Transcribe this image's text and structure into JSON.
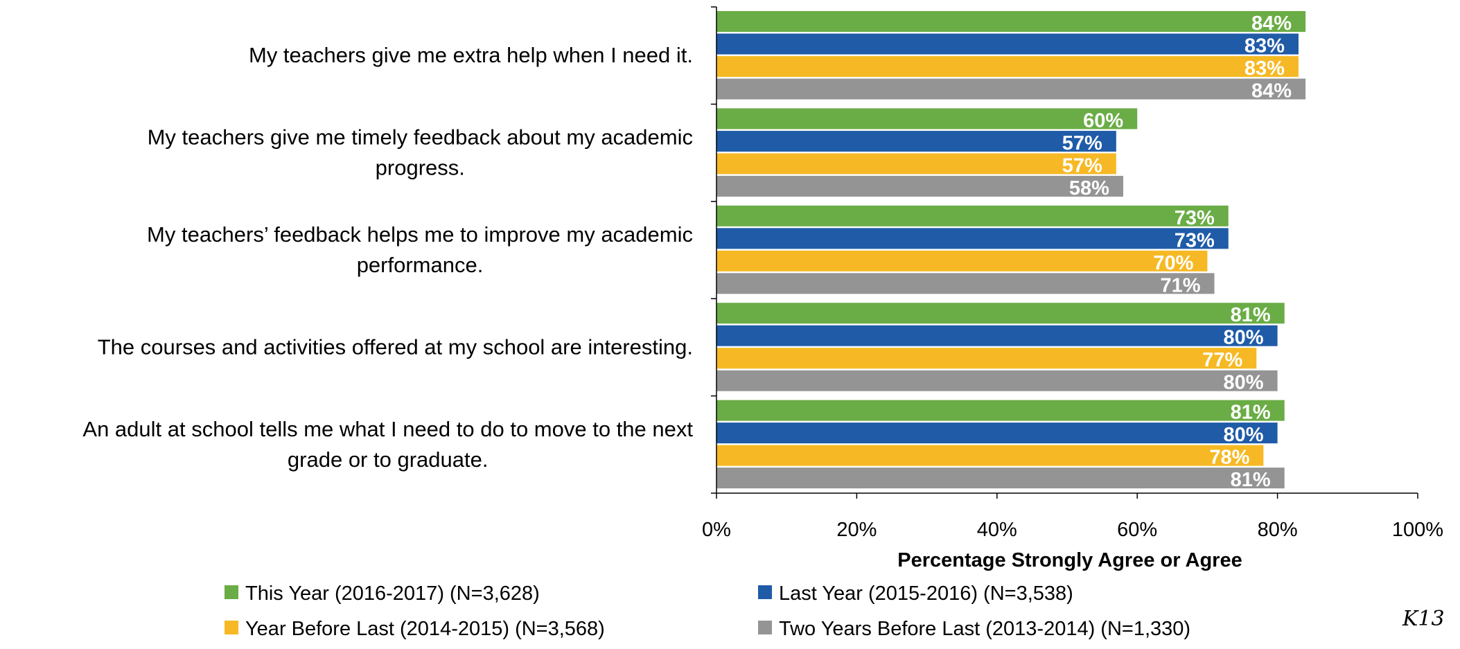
{
  "chart_data": {
    "type": "bar",
    "orientation": "horizontal",
    "categories": [
      "My teachers give me extra help when I need it.",
      "My teachers give me timely feedback about my academic progress.",
      "My teachers’ feedback helps me to improve my academic performance.",
      "The courses and activities offered at my school are interesting.",
      "An adult at school tells me what I need to do to move to the next grade or to graduate."
    ],
    "category_lines": [
      [
        "My teachers give me extra help when I need it."
      ],
      [
        "My teachers give me timely feedback about my academic",
        "progress."
      ],
      [
        "My teachers’ feedback helps me to improve my academic",
        "performance."
      ],
      [
        "The courses and activities offered at my school are interesting."
      ],
      [
        "An adult at school tells me what I need to do to move to the next",
        "grade or to graduate."
      ]
    ],
    "series": [
      {
        "name": "This Year (2016-2017) (N=3,628)",
        "color": "#6aac45",
        "values": [
          84,
          60,
          73,
          81,
          81
        ]
      },
      {
        "name": "Last Year (2015-2016) (N=3,538)",
        "color": "#1f5ba7",
        "values": [
          83,
          57,
          73,
          80,
          80
        ]
      },
      {
        "name": "Year Before Last (2014-2015) (N=3,568)",
        "color": "#f6b925",
        "values": [
          83,
          57,
          70,
          77,
          78
        ]
      },
      {
        "name": "Two Years Before Last (2013-2014) (N=1,330)",
        "color": "#949494",
        "values": [
          84,
          58,
          71,
          80,
          81
        ]
      }
    ],
    "xlim": [
      0,
      100
    ],
    "xticks": [
      "0%",
      "20%",
      "40%",
      "60%",
      "80%",
      "100%"
    ],
    "xlabel": "Percentage Strongly Agree or Agree",
    "ylabel": "",
    "title": "",
    "grid": false,
    "legend_position": "bottom"
  },
  "corner_text": "K13"
}
